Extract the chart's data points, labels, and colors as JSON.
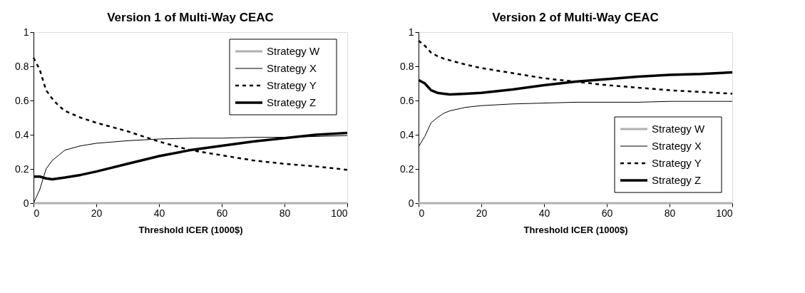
{
  "chart_data": [
    {
      "type": "line",
      "title": "Version 1 of Multi-Way CEAC",
      "xlabel": "Threshold ICER (1000$)",
      "xlim": [
        0,
        100
      ],
      "xticks": [
        0,
        20,
        40,
        60,
        80,
        100
      ],
      "ylim": [
        0,
        1
      ],
      "yticks": [
        0,
        0.2,
        0.4,
        0.6,
        0.8,
        1
      ],
      "grid": false,
      "legend": "top right",
      "marker": "none",
      "x": [
        0,
        2,
        4,
        6,
        8,
        10,
        15,
        20,
        30,
        40,
        50,
        60,
        70,
        80,
        90,
        100
      ],
      "series": [
        {
          "name": "Strategy W",
          "color": "#b0b0b0",
          "line_style": "solid",
          "values": [
            0,
            0,
            0,
            0,
            0,
            0,
            0,
            0,
            0,
            0,
            0,
            0,
            0,
            0,
            0,
            0
          ]
        },
        {
          "name": "Strategy X",
          "color": "#000000",
          "line_style": "solid",
          "values": [
            0,
            0.08,
            0.2,
            0.25,
            0.28,
            0.31,
            0.335,
            0.35,
            0.365,
            0.375,
            0.38,
            0.38,
            0.385,
            0.385,
            0.39,
            0.395
          ]
        },
        {
          "name": "Strategy Y",
          "color": "#000000",
          "line_style": "dashed",
          "values": [
            0.85,
            0.78,
            0.66,
            0.61,
            0.57,
            0.54,
            0.5,
            0.47,
            0.42,
            0.36,
            0.31,
            0.28,
            0.25,
            0.23,
            0.215,
            0.195
          ]
        },
        {
          "name": "Strategy Z",
          "color": "#000000",
          "line_style": "solid",
          "values": [
            0.155,
            0.155,
            0.145,
            0.14,
            0.145,
            0.15,
            0.165,
            0.185,
            0.23,
            0.275,
            0.31,
            0.335,
            0.36,
            0.38,
            0.4,
            0.41
          ]
        }
      ]
    },
    {
      "type": "line",
      "title": "Version 2 of Multi-Way CEAC",
      "xlabel": "Threshold ICER (1000$)",
      "xlim": [
        0,
        100
      ],
      "xticks": [
        0,
        20,
        40,
        60,
        80,
        100
      ],
      "ylim": [
        0,
        1
      ],
      "yticks": [
        0,
        0.2,
        0.4,
        0.6,
        0.8,
        1
      ],
      "grid": false,
      "legend": "bottom right",
      "marker": "none",
      "x": [
        0,
        2,
        4,
        6,
        8,
        10,
        15,
        20,
        30,
        40,
        50,
        60,
        70,
        80,
        90,
        100
      ],
      "series": [
        {
          "name": "Strategy W",
          "color": "#b0b0b0",
          "line_style": "solid",
          "values": [
            0,
            0,
            0,
            0,
            0,
            0,
            0,
            0,
            0,
            0,
            0,
            0,
            0,
            0,
            0,
            0
          ]
        },
        {
          "name": "Strategy X",
          "color": "#000000",
          "line_style": "solid",
          "values": [
            0.33,
            0.39,
            0.47,
            0.5,
            0.525,
            0.54,
            0.56,
            0.57,
            0.58,
            0.585,
            0.59,
            0.59,
            0.59,
            0.595,
            0.595,
            0.595
          ]
        },
        {
          "name": "Strategy Y",
          "color": "#000000",
          "line_style": "dashed",
          "values": [
            0.95,
            0.92,
            0.88,
            0.86,
            0.845,
            0.835,
            0.81,
            0.79,
            0.76,
            0.73,
            0.71,
            0.69,
            0.675,
            0.66,
            0.65,
            0.64
          ]
        },
        {
          "name": "Strategy Z",
          "color": "#000000",
          "line_style": "solid",
          "values": [
            0.72,
            0.7,
            0.66,
            0.645,
            0.64,
            0.635,
            0.64,
            0.645,
            0.665,
            0.69,
            0.71,
            0.725,
            0.74,
            0.75,
            0.755,
            0.765
          ]
        }
      ]
    }
  ]
}
